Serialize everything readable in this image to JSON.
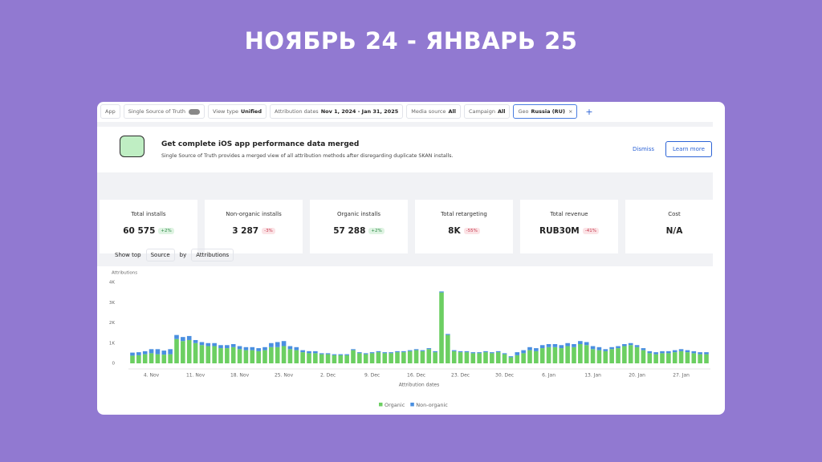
{
  "header": {
    "title": "НОЯБРЬ 24 - ЯНВАРЬ 25"
  },
  "filters": {
    "app": "App",
    "sst": "Single Source of Truth",
    "view_label": "View type",
    "view_value": "Unified",
    "dates_label": "Attribution dates",
    "dates_value": "Nov 1, 2024 - Jan 31, 2025",
    "media_label": "Media source",
    "media_value": "All",
    "campaign_label": "Campaign",
    "campaign_value": "All",
    "geo_label": "Geo",
    "geo_value": "Russia (RU)",
    "add": "+"
  },
  "banner": {
    "title": "Get complete iOS app performance data merged",
    "text": "Single Source of Truth provides a merged view of all attribution methods after disregarding duplicate SKAN installs.",
    "dismiss": "Dismiss",
    "learn": "Learn more"
  },
  "kpis": [
    {
      "label": "Total installs",
      "value": "60 575",
      "change": "+2%"
    },
    {
      "label": "Non-organic installs",
      "value": "3 287",
      "change": "-3%"
    },
    {
      "label": "Organic installs",
      "value": "57 288",
      "change": "+2%"
    },
    {
      "label": "Total retargeting",
      "value": "8K",
      "change": "-55%"
    },
    {
      "label": "Total revenue",
      "value": "RUB30M",
      "change": "-41%"
    },
    {
      "label": "Cost",
      "value": "N/A"
    }
  ],
  "controls": {
    "show_top": "Show top",
    "source": "Source",
    "by": "by",
    "attributions": "Attributions"
  },
  "chart_data": {
    "type": "bar",
    "stacked": true,
    "y_label": "Attributions",
    "x_label": "Attribution dates",
    "categories": [
      null,
      null,
      null,
      "4. Nov",
      null,
      null,
      null,
      null,
      null,
      null,
      "11. Nov",
      null,
      null,
      null,
      null,
      null,
      null,
      "18. Nov",
      null,
      null,
      null,
      null,
      null,
      null,
      "25. Nov",
      null,
      null,
      null,
      null,
      null,
      null,
      "2. Dec",
      null,
      null,
      null,
      null,
      null,
      null,
      "9. Dec",
      null,
      null,
      null,
      null,
      null,
      null,
      "16. Dec",
      null,
      null,
      null,
      null,
      null,
      null,
      "23. Dec",
      null,
      null,
      null,
      null,
      null,
      null,
      "30. Dec",
      null,
      null,
      null,
      null,
      null,
      null,
      "6. Jan",
      null,
      null,
      null,
      null,
      null,
      null,
      "13. Jan",
      null,
      null,
      null,
      null,
      null,
      null,
      "20. Jan",
      null,
      null,
      null,
      null,
      null,
      null,
      "27. Jan",
      null,
      null,
      null,
      null
    ],
    "series": [
      {
        "name": "Organic",
        "color": "#6ccf62",
        "values": [
          380,
          400,
          450,
          500,
          450,
          430,
          450,
          1200,
          1100,
          1150,
          1000,
          900,
          850,
          850,
          750,
          750,
          800,
          700,
          650,
          650,
          600,
          650,
          800,
          800,
          850,
          700,
          650,
          550,
          500,
          500,
          450,
          450,
          400,
          400,
          400,
          650,
          500,
          450,
          500,
          550,
          500,
          500,
          550,
          550,
          600,
          650,
          600,
          700,
          550,
          3500,
          1400,
          600,
          550,
          550,
          500,
          500,
          550,
          500,
          550,
          450,
          300,
          400,
          500,
          650,
          600,
          750,
          800,
          800,
          750,
          850,
          800,
          950,
          900,
          700,
          650,
          600,
          700,
          750,
          850,
          900,
          800,
          650,
          500,
          450,
          500,
          500,
          550,
          600,
          550,
          500,
          450,
          450
        ]
      },
      {
        "name": "Non-organic",
        "color": "#4a8fe0",
        "values": [
          150,
          150,
          150,
          200,
          250,
          200,
          250,
          200,
          200,
          200,
          150,
          150,
          150,
          150,
          150,
          150,
          150,
          150,
          150,
          150,
          150,
          150,
          200,
          250,
          250,
          150,
          150,
          100,
          100,
          100,
          50,
          50,
          50,
          50,
          50,
          50,
          50,
          50,
          50,
          50,
          50,
          50,
          50,
          50,
          50,
          50,
          50,
          50,
          50,
          50,
          50,
          50,
          50,
          50,
          50,
          50,
          50,
          50,
          50,
          50,
          50,
          150,
          150,
          150,
          150,
          150,
          150,
          150,
          150,
          150,
          150,
          150,
          150,
          150,
          150,
          100,
          100,
          100,
          100,
          100,
          100,
          100,
          100,
          100,
          100,
          100,
          100,
          100,
          100,
          100,
          100,
          100
        ]
      }
    ],
    "ylim": [
      0,
      4000
    ],
    "yticks": [
      0,
      {
        "value": 1000,
        "label": "1K"
      },
      {
        "value": 2000,
        "label": "2K"
      },
      {
        "value": 3000,
        "label": "3K"
      },
      {
        "value": 4000,
        "label": "4K"
      }
    ],
    "legend": "bottom"
  }
}
